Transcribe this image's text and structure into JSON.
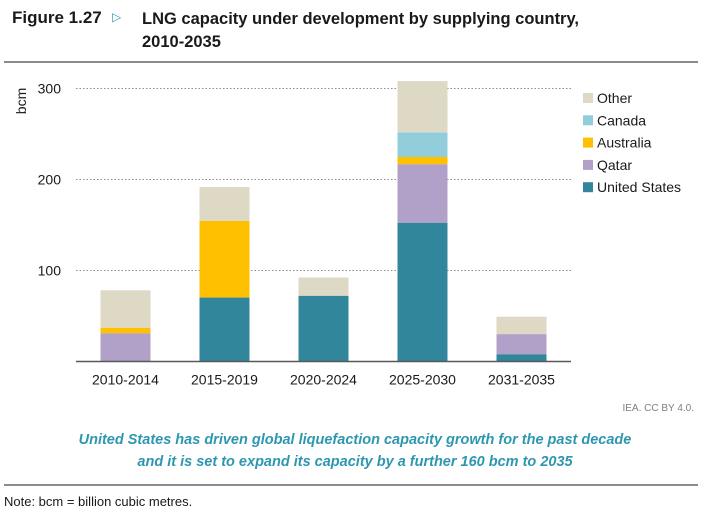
{
  "figure": {
    "label": "Figure 1.27",
    "arrow_icon": "triangle-right-outline",
    "title": "LNG capacity under development by supplying country, 2010-2035",
    "title_line1": "LNG capacity under development by supplying country,",
    "title_line2": "2010-2035"
  },
  "source": "IEA. CC BY 4.0.",
  "takeaway": {
    "line1": "United States has driven global liquefaction capacity growth for the past decade",
    "line2": "and it is set to expand its capacity by a further 160 bcm to 2035"
  },
  "note": "Note: bcm = billion cubic metres.",
  "chart_data": {
    "type": "bar",
    "stacked": true,
    "title": "LNG capacity under development by supplying country, 2010-2035",
    "xlabel": "",
    "ylabel": "bcm",
    "ylim": [
      0,
      300
    ],
    "yticks": [
      100,
      200,
      300
    ],
    "grid": "horizontal-dotted",
    "legend_position": "top-right",
    "categories": [
      "2010-2014",
      "2015-2019",
      "2020-2024",
      "2025-2030",
      "2031-2035"
    ],
    "series": [
      {
        "name": "United States",
        "color": "#31869b",
        "values": [
          0,
          70,
          72,
          152,
          8
        ]
      },
      {
        "name": "Qatar",
        "color": "#b1a0c7",
        "values": [
          31,
          0,
          0,
          64,
          22
        ]
      },
      {
        "name": "Australia",
        "color": "#ffc000",
        "values": [
          6,
          84,
          0,
          8,
          0
        ]
      },
      {
        "name": "Canada",
        "color": "#92cddc",
        "values": [
          0,
          0,
          0,
          27,
          0
        ]
      },
      {
        "name": "Other",
        "color": "#ddd9c4",
        "values": [
          41,
          37,
          20,
          56,
          19
        ]
      }
    ],
    "legend_order": [
      "Other",
      "Canada",
      "Australia",
      "Qatar",
      "United States"
    ]
  }
}
